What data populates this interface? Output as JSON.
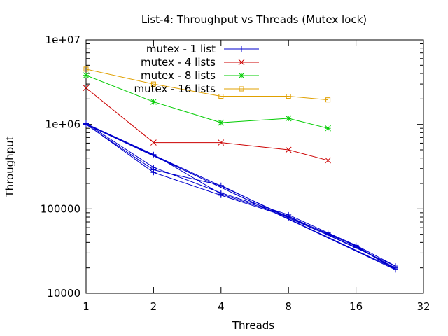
{
  "chart_data": {
    "type": "line",
    "title": "List-4: Throughput vs Threads (Mutex lock)",
    "xlabel": "Threads",
    "ylabel": "Throughput",
    "x_scale": "log2",
    "y_scale": "log10",
    "xlim": [
      1,
      32
    ],
    "ylim": [
      10000,
      10000000
    ],
    "x_ticks": [
      1,
      2,
      4,
      8,
      16,
      32
    ],
    "x_tick_labels": [
      "1",
      "2",
      "4",
      "8",
      "16",
      "32"
    ],
    "y_ticks": [
      10000,
      100000,
      1000000,
      10000000
    ],
    "y_tick_labels": [
      "10000",
      "100000",
      "1e+06",
      "1e+07"
    ],
    "grid": false,
    "legend_position": "top-left",
    "series": [
      {
        "name": "mutex - 1 list",
        "color": "#0000cc",
        "marker": "plus",
        "points": [
          [
            1,
            1030000
          ],
          [
            2,
            310000
          ],
          [
            4,
            155000
          ],
          [
            8,
            85000
          ],
          [
            12,
            52000
          ],
          [
            16,
            37000
          ],
          [
            24,
            21000
          ],
          [
            1,
            1010000
          ],
          [
            2,
            270000
          ],
          [
            4,
            145000
          ],
          [
            8,
            80000
          ],
          [
            12,
            51000
          ],
          [
            16,
            36000
          ],
          [
            24,
            19000
          ],
          [
            1,
            1020000
          ],
          [
            2,
            440000
          ],
          [
            4,
            150000
          ],
          [
            8,
            82000
          ],
          [
            12,
            50000
          ],
          [
            16,
            36500
          ],
          [
            24,
            19500
          ],
          [
            1,
            1000000
          ],
          [
            2,
            290000
          ],
          [
            4,
            190000
          ],
          [
            8,
            78000
          ],
          [
            12,
            49000
          ],
          [
            16,
            35000
          ],
          [
            24,
            20000
          ]
        ]
      },
      {
        "name": "mutex -  4 lists",
        "color": "#cc0000",
        "marker": "cross",
        "points": [
          [
            1,
            2700000
          ],
          [
            2,
            610000
          ],
          [
            4,
            610000
          ],
          [
            8,
            500000
          ],
          [
            12,
            375000
          ]
        ]
      },
      {
        "name": "mutex - 8 lists",
        "color": "#00cc00",
        "marker": "star",
        "points": [
          [
            1,
            3800000
          ],
          [
            2,
            1850000
          ],
          [
            4,
            1050000
          ],
          [
            8,
            1180000
          ],
          [
            12,
            900000
          ]
        ]
      },
      {
        "name": "mutex - 16 lists",
        "color": "#e0a000",
        "marker": "square",
        "points": [
          [
            1,
            4500000
          ],
          [
            2,
            3000000
          ],
          [
            4,
            2150000
          ],
          [
            8,
            2150000
          ],
          [
            12,
            1950000
          ]
        ]
      }
    ]
  }
}
